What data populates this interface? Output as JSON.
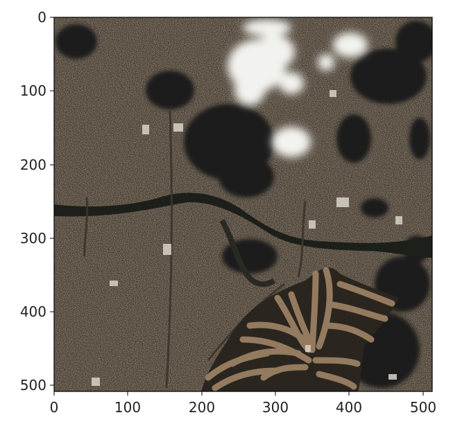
{
  "figure": {
    "image_description_hidden": "",
    "x_ticks": [
      "0",
      "100",
      "200",
      "300",
      "400",
      "500"
    ],
    "y_ticks": [
      "0",
      "100",
      "200",
      "300",
      "400",
      "500"
    ],
    "x_range": [
      0,
      512
    ],
    "y_range": [
      0,
      512
    ],
    "colors": {
      "urban": "#4a4034",
      "water": "#1d1f1b",
      "cloud": "#f2f2ee",
      "golf": "#9a7f63",
      "frame": "#000000"
    }
  }
}
